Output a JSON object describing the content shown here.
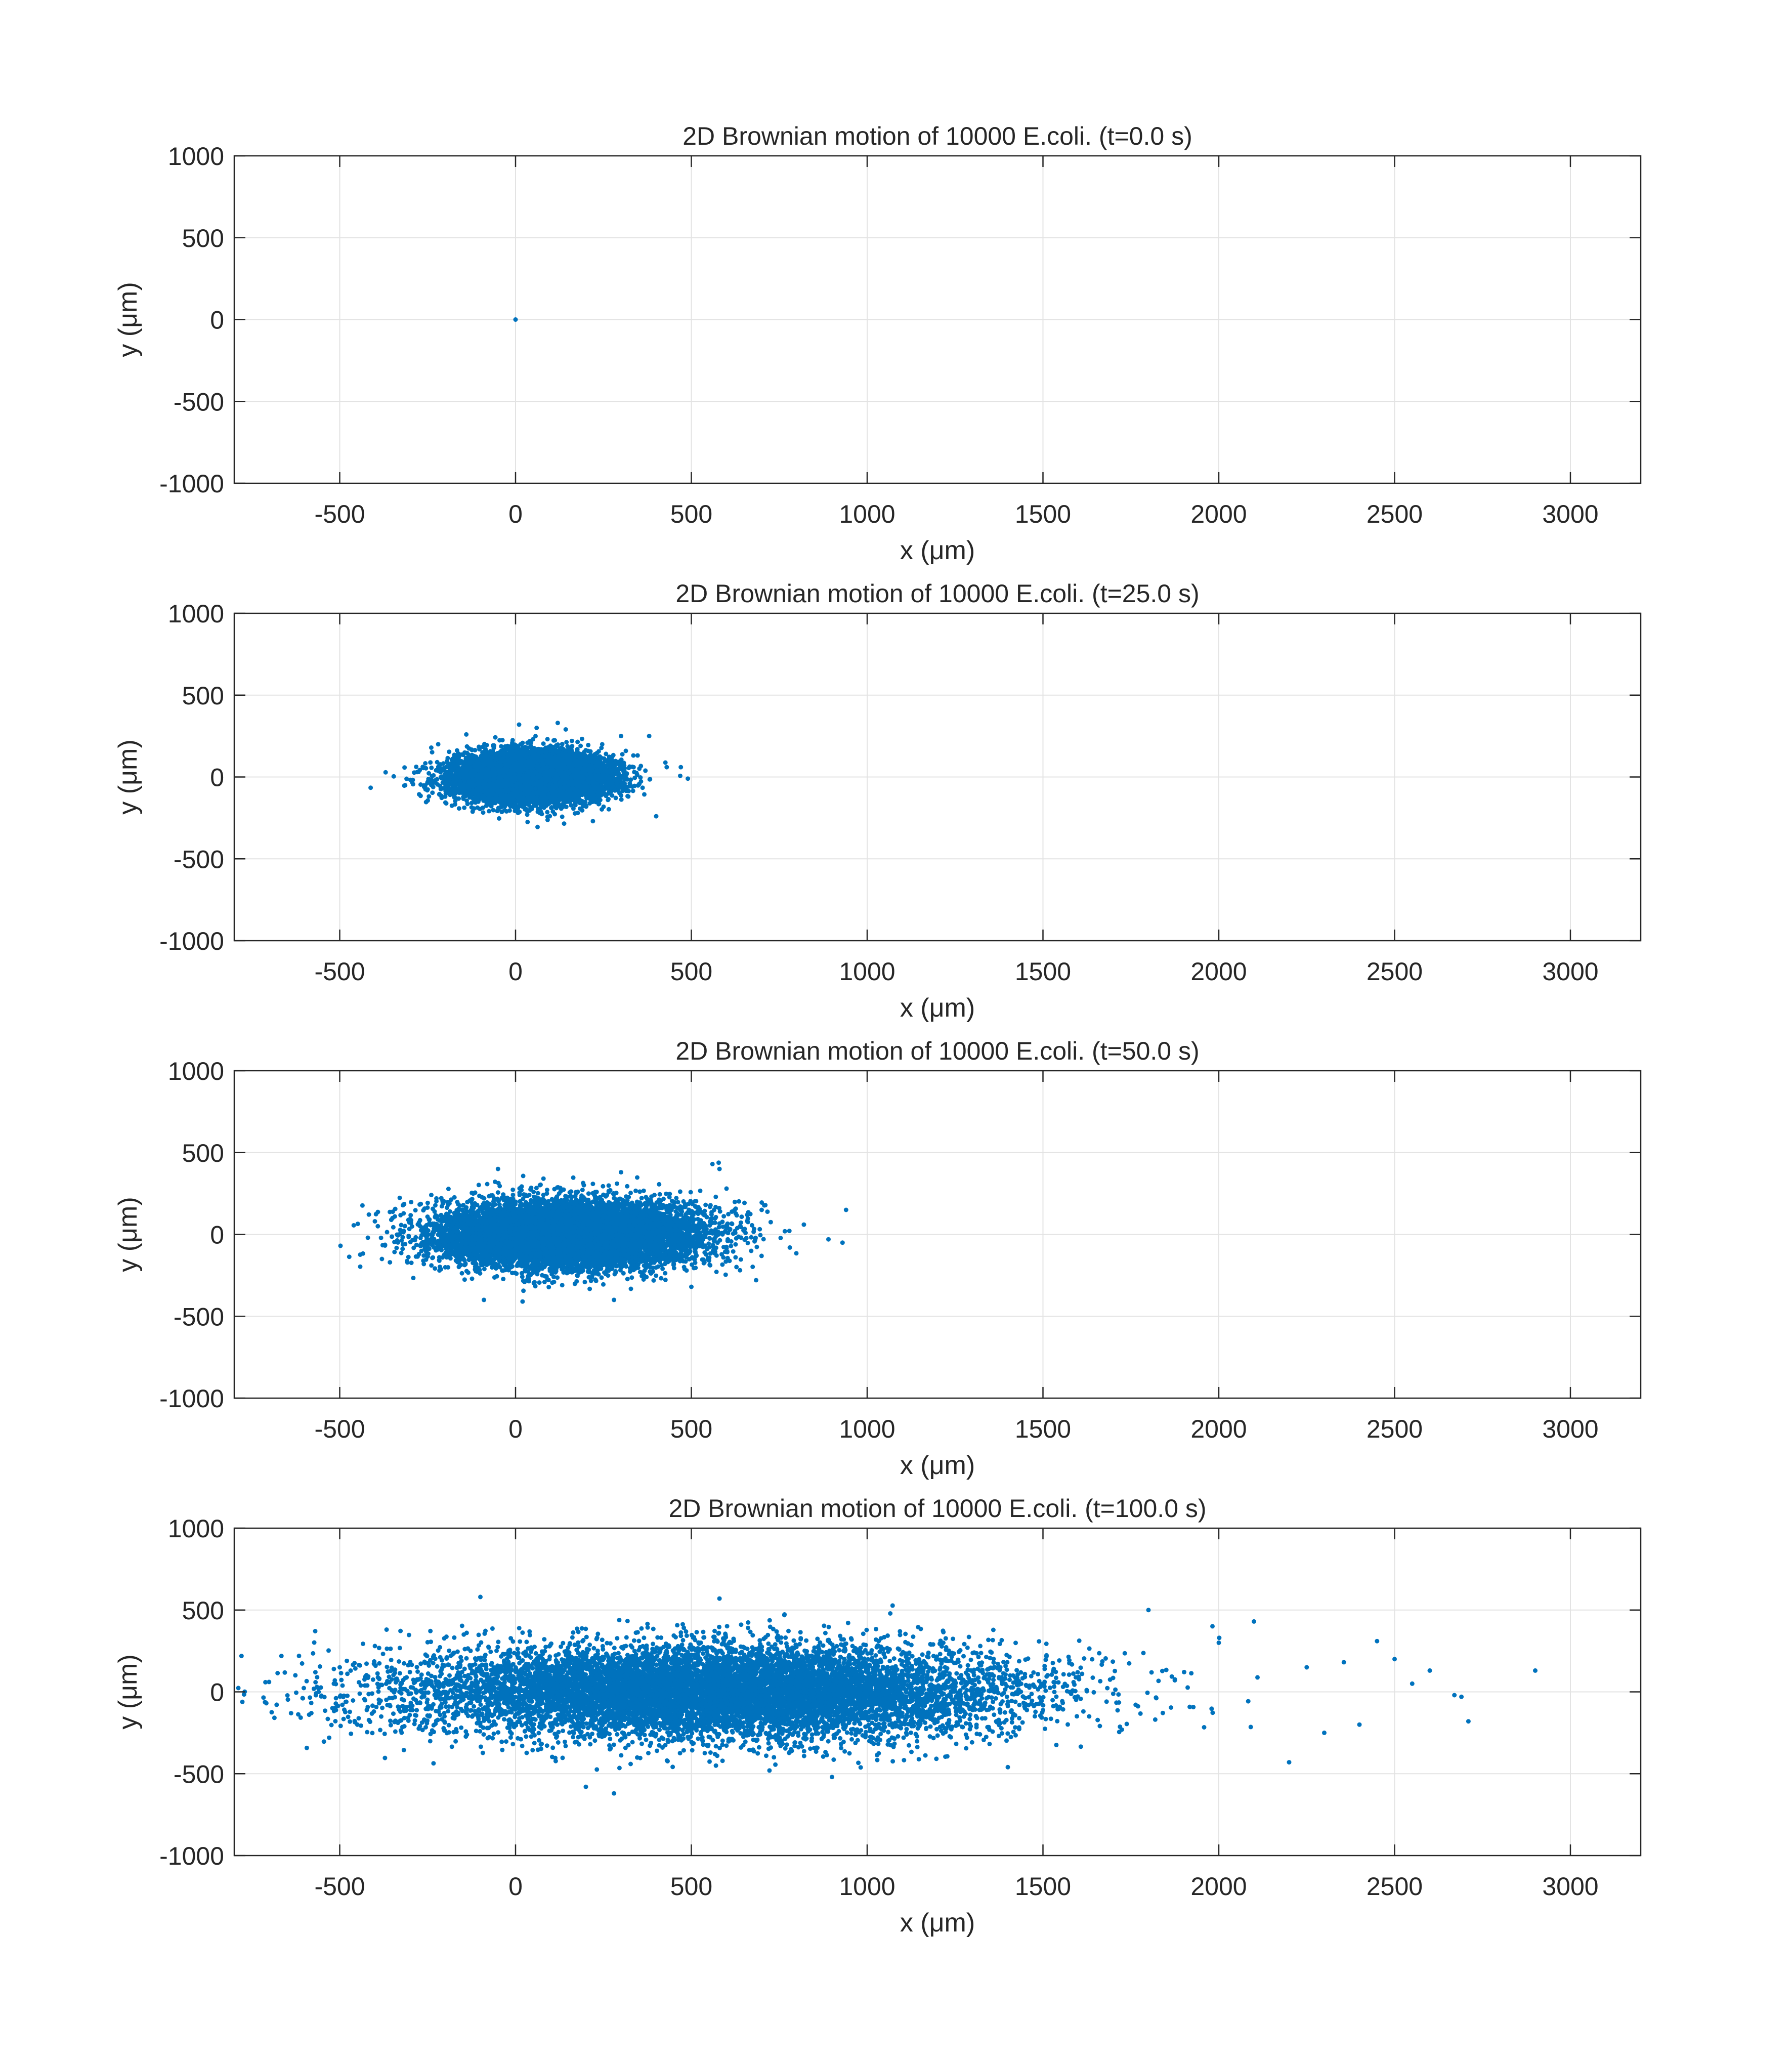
{
  "chart_data": [
    {
      "type": "scatter",
      "title": "2D Brownian motion of 10000 E.coli. (t=0.0 s)",
      "xlabel": "x (μm)",
      "ylabel": "y (μm)",
      "xlim": [
        -800,
        3200
      ],
      "ylim": [
        -1000,
        1000
      ],
      "xticks": [
        "-500",
        "0",
        "500",
        "1000",
        "1500",
        "2000",
        "2500",
        "3000"
      ],
      "yticks": [
        "-1000",
        "-500",
        "0",
        "500",
        "1000"
      ],
      "grid": true,
      "marker_color": "#0072bd",
      "n_points": 10000,
      "points": [
        [
          0,
          0
        ]
      ]
    },
    {
      "type": "scatter",
      "title": "2D Brownian motion of 10000 E.coli. (t=25.0 s)",
      "xlabel": "x (μm)",
      "ylabel": "y (μm)",
      "xlim": [
        -800,
        3200
      ],
      "ylim": [
        -1000,
        1000
      ],
      "xticks": [
        "-500",
        "0",
        "500",
        "1000",
        "1500",
        "2000",
        "2500",
        "3000"
      ],
      "yticks": [
        "-1000",
        "-500",
        "0",
        "500",
        "1000"
      ],
      "grid": true,
      "marker_color": "#0072bd",
      "n_points": 10000,
      "cloud": {
        "center_x": 50,
        "center_y": 0,
        "sd_x": 105,
        "sd_y": 72
      },
      "outliers": [
        [
          -280,
          30
        ],
        [
          -260,
          -60
        ],
        [
          -220,
          200
        ],
        [
          -200,
          -120
        ],
        [
          380,
          250
        ],
        [
          400,
          -240
        ],
        [
          430,
          60
        ],
        [
          470,
          60
        ],
        [
          490,
          -10
        ],
        [
          220,
          -270
        ],
        [
          10,
          320
        ],
        [
          60,
          300
        ],
        [
          120,
          330
        ],
        [
          -140,
          260
        ],
        [
          300,
          250
        ]
      ]
    },
    {
      "type": "scatter",
      "title": "2D Brownian motion of 10000 E.coli. (t=50.0 s)",
      "xlabel": "x (μm)",
      "ylabel": "y (μm)",
      "xlim": [
        -800,
        3200
      ],
      "ylim": [
        -1000,
        1000
      ],
      "xticks": [
        "-500",
        "0",
        "500",
        "1000",
        "1500",
        "2000",
        "2500",
        "3000"
      ],
      "yticks": [
        "-1000",
        "-500",
        "0",
        "500",
        "1000"
      ],
      "grid": true,
      "marker_color": "#0072bd",
      "n_points": 10000,
      "cloud": {
        "center_x": 150,
        "center_y": 0,
        "sd_x": 180,
        "sd_y": 100
      },
      "outliers": [
        [
          -420,
          -20
        ],
        [
          -400,
          80
        ],
        [
          -380,
          -150
        ],
        [
          -350,
          100
        ],
        [
          560,
          430
        ],
        [
          580,
          400
        ],
        [
          600,
          280
        ],
        [
          700,
          150
        ],
        [
          780,
          -80
        ],
        [
          820,
          60
        ],
        [
          890,
          -30
        ],
        [
          930,
          -50
        ],
        [
          940,
          150
        ],
        [
          -50,
          400
        ],
        [
          300,
          380
        ],
        [
          -90,
          -400
        ],
        [
          20,
          -410
        ],
        [
          280,
          -400
        ],
        [
          500,
          -320
        ]
      ]
    },
    {
      "type": "scatter",
      "title": "2D Brownian motion of 10000 E.coli. (t=100.0 s)",
      "xlabel": "x (μm)",
      "ylabel": "y (μm)",
      "xlim": [
        -800,
        3200
      ],
      "ylim": [
        -1000,
        1000
      ],
      "xticks": [
        "-500",
        "0",
        "500",
        "1000",
        "1500",
        "2000",
        "2500",
        "3000"
      ],
      "yticks": [
        "-1000",
        "-500",
        "0",
        "500",
        "1000"
      ],
      "grid": true,
      "marker_color": "#0072bd",
      "n_points": 10000,
      "cloud": {
        "center_x": 550,
        "center_y": 0,
        "sd_x": 430,
        "sd_y": 140
      },
      "outliers": [
        [
          -560,
          0
        ],
        [
          -530,
          -280
        ],
        [
          -500,
          150
        ],
        [
          -450,
          -200
        ],
        [
          -400,
          280
        ],
        [
          2000,
          300
        ],
        [
          2100,
          430
        ],
        [
          2200,
          -430
        ],
        [
          2250,
          150
        ],
        [
          2300,
          -250
        ],
        [
          2400,
          -200
        ],
        [
          2450,
          310
        ],
        [
          2500,
          200
        ],
        [
          2550,
          50
        ],
        [
          2600,
          130
        ],
        [
          2670,
          -20
        ],
        [
          2690,
          -30
        ],
        [
          2710,
          -180
        ],
        [
          2900,
          130
        ],
        [
          -100,
          580
        ],
        [
          580,
          570
        ],
        [
          1800,
          500
        ],
        [
          200,
          -580
        ],
        [
          280,
          -620
        ],
        [
          900,
          -520
        ],
        [
          1400,
          -460
        ]
      ]
    }
  ]
}
